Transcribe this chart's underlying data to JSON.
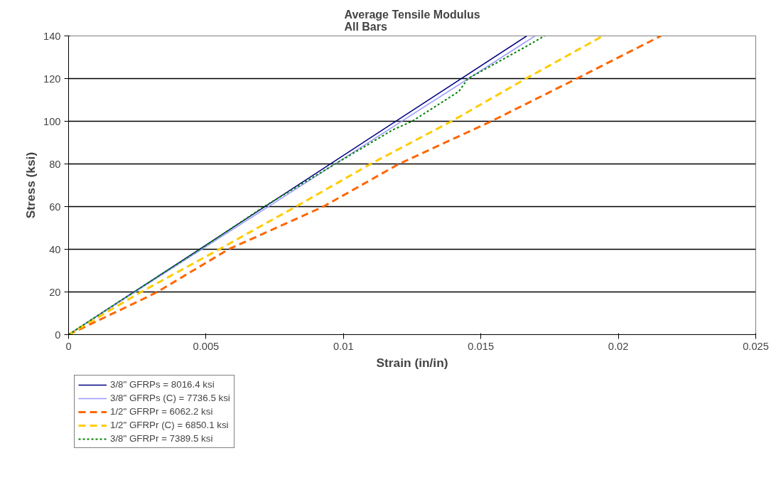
{
  "chart_data": {
    "type": "line",
    "title": "Average Tensile Modulus\nAll Bars",
    "xlabel": "Strain (in/in)",
    "ylabel": "Stress (ksi)",
    "xlim": [
      0,
      0.025
    ],
    "xticks": [
      0,
      0.005,
      0.01,
      0.015,
      0.02,
      0.025
    ],
    "ylim": [
      0,
      140
    ],
    "yticks": [
      0,
      20,
      40,
      60,
      80,
      100,
      120,
      140
    ],
    "grid": "y",
    "legend": "bottom left",
    "marker": "none",
    "series": [
      {
        "name": "3/8\" GFRPs = 8016.4 ksi",
        "color": "#000080",
        "line_style": "solid",
        "x": [
          0,
          0.01667
        ],
        "values": [
          0,
          140
        ]
      },
      {
        "name": "3/8\" GFRPs (C) = 7736.5 ksi",
        "color": "#9999ff",
        "line_style": "solid",
        "x": [
          0,
          0.01697
        ],
        "values": [
          0,
          140
        ]
      },
      {
        "name": "1/2\" GFRPr = 6062.2 ksi",
        "color": "#ff6600",
        "line_style": "dashed",
        "x": [
          0,
          0.0026,
          0.00323,
          0.00582,
          0.00927,
          0.01202,
          0.01538,
          0.01849,
          0.02155
        ],
        "values": [
          0,
          16,
          20,
          40,
          60,
          80,
          100,
          120,
          140
        ]
      },
      {
        "name": "1/2\" GFRPr (C) = 6850.1 ksi",
        "color": "#ffcc00",
        "line_style": "dashed",
        "x": [
          0,
          0.00264,
          0.00548,
          0.00827,
          0.01099,
          0.01393,
          0.01664,
          0.01944
        ],
        "values": [
          0,
          20,
          40,
          60,
          80,
          100,
          120,
          140
        ]
      },
      {
        "name": "3/8\" GFRPr = 7389.5 ksi",
        "color": "#008000",
        "line_style": "dotted",
        "x": [
          0,
          0.00238,
          0.00478,
          0.00711,
          0.0097,
          0.0118,
          0.0125,
          0.0142,
          0.01453,
          0.0165,
          0.01732
        ],
        "values": [
          0,
          20,
          40,
          60,
          80,
          96,
          100,
          114,
          120,
          134,
          140
        ]
      }
    ]
  }
}
